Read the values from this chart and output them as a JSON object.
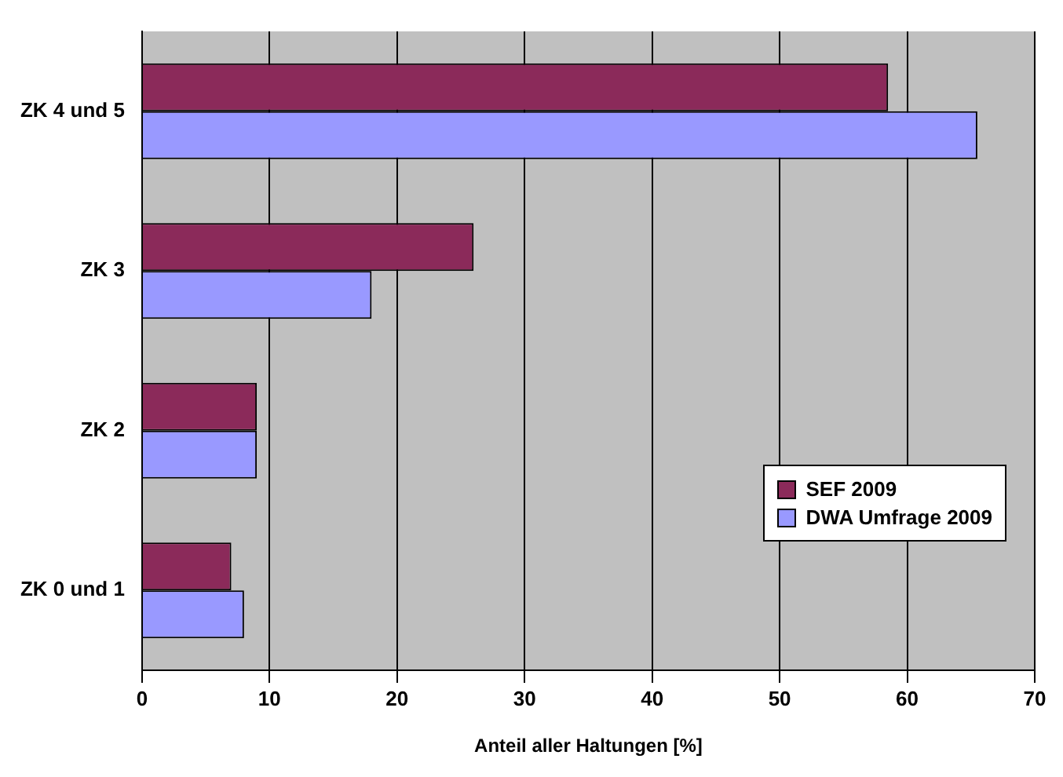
{
  "chart_data": {
    "type": "bar",
    "orientation": "horizontal",
    "xlabel": "Anteil aller Haltungen [%]",
    "categories": [
      "ZK 4 und 5",
      "ZK 3",
      "ZK 2",
      "ZK 0 und 1"
    ],
    "series": [
      {
        "name": "SEF 2009",
        "color": "#8b2a5a",
        "values": [
          58.5,
          26,
          9,
          7
        ]
      },
      {
        "name": "DWA Umfrage 2009",
        "color": "#9999ff",
        "values": [
          65.5,
          18,
          9,
          8
        ]
      }
    ],
    "xlim": [
      0,
      70
    ],
    "xticks": [
      0,
      10,
      20,
      30,
      40,
      50,
      60,
      70
    ],
    "grid": "x",
    "legend": "bottom right"
  }
}
